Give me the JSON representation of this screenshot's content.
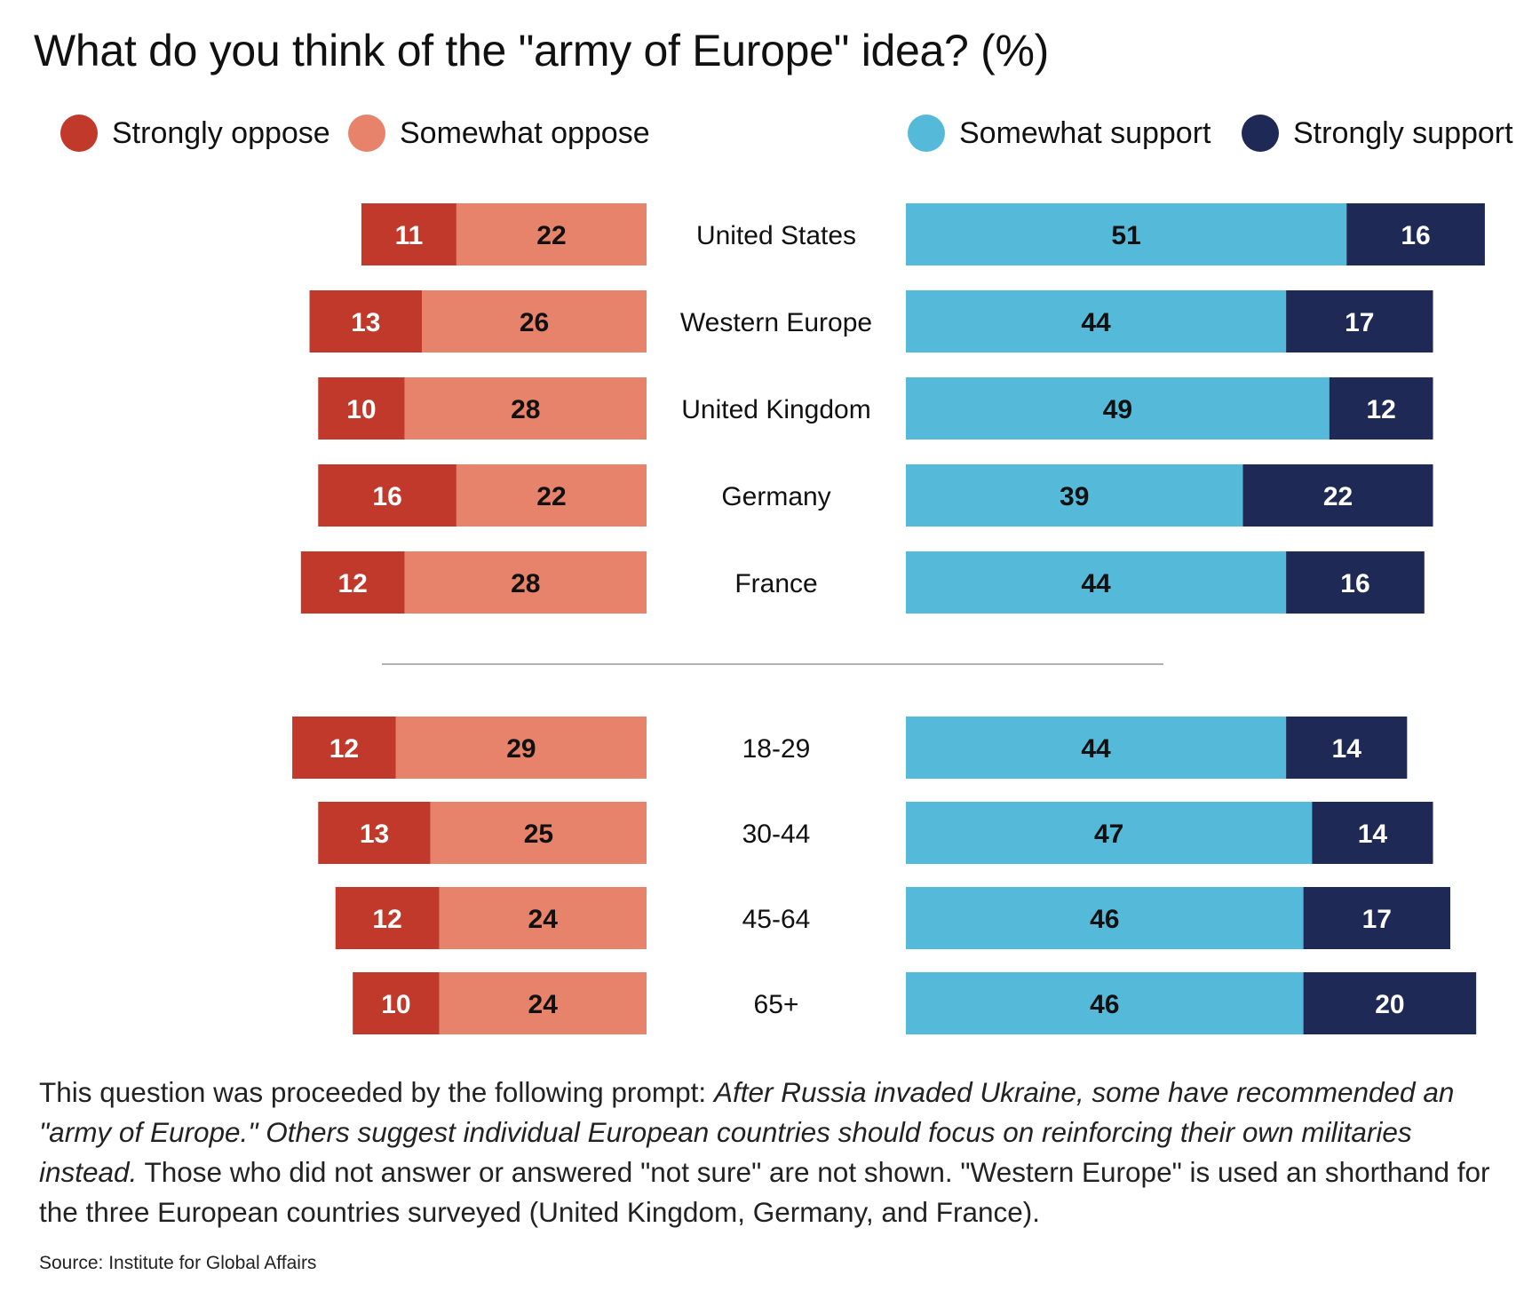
{
  "title": "What do you think of the \"army of Europe\" idea? (%)",
  "legend": [
    {
      "label": "Strongly oppose",
      "color": "#c0392b"
    },
    {
      "label": "Somewhat oppose",
      "color": "#e6836a"
    },
    {
      "label": "Somewhat support",
      "color": "#55bad9"
    },
    {
      "label": "Strongly support",
      "color": "#1e2a55"
    }
  ],
  "chart_data": {
    "type": "bar",
    "categories": [
      "United States",
      "Western Europe",
      "United Kingdom",
      "Germany",
      "France",
      "18-29",
      "30-44",
      "45-64",
      "65+"
    ],
    "groups": [
      [
        "United States",
        "Western Europe",
        "United Kingdom",
        "Germany",
        "France"
      ],
      [
        "18-29",
        "30-44",
        "45-64",
        "65+"
      ]
    ],
    "series": [
      {
        "name": "Strongly oppose",
        "color": "#c0392b",
        "values": [
          11,
          13,
          10,
          16,
          12,
          12,
          13,
          12,
          10
        ]
      },
      {
        "name": "Somewhat oppose",
        "color": "#e6836a",
        "values": [
          22,
          26,
          28,
          22,
          28,
          29,
          25,
          24,
          24
        ]
      },
      {
        "name": "Somewhat support",
        "color": "#55bad9",
        "values": [
          51,
          44,
          49,
          39,
          44,
          44,
          47,
          46,
          46
        ]
      },
      {
        "name": "Strongly support",
        "color": "#1e2a55",
        "values": [
          16,
          17,
          12,
          22,
          16,
          14,
          14,
          17,
          20
        ]
      }
    ],
    "layout": "diverging stacked horizontal bar"
  },
  "note": {
    "lead": "This question was proceeded by the following prompt: ",
    "prompt": "After Russia invaded Ukraine, some have recommended an \"army of Europe.\" Others suggest individual European countries should focus on reinforcing their own militaries instead.",
    "tail": " Those who did not answer or answered \"not sure\" are not shown. \"Western Europe\" is used an shorthand for the three European countries surveyed (United Kingdom, Germany, and France)."
  },
  "source": "Source: Institute for Global Affairs"
}
